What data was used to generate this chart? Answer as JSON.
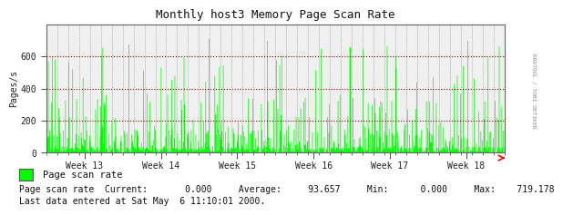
{
  "title": "Monthly host3 Memory Page Scan Rate",
  "ylabel": "Pages/s",
  "x_week_labels": [
    "Week 13",
    "Week 14",
    "Week 15",
    "Week 16",
    "Week 17",
    "Week 18"
  ],
  "ylim": [
    0,
    800
  ],
  "yticks": [
    0,
    200,
    400,
    600
  ],
  "bar_color": "#00FF00",
  "bg_color": "#FFFFFF",
  "plot_bg_color": "#F0F0F0",
  "grid_color_h": "#880000",
  "grid_color_v": "#888888",
  "legend_label": "Page scan rate",
  "stats_line1": "Page scan rate  Current:       0.000     Average:     93.657     Min:      0.000     Max:    719.178",
  "stats_line2": "Last data entered at Sat May  6 11:10:01 2000.",
  "right_label": "RRDTOOL / TOBI OETIKER",
  "num_points": 700,
  "seed": 12345
}
